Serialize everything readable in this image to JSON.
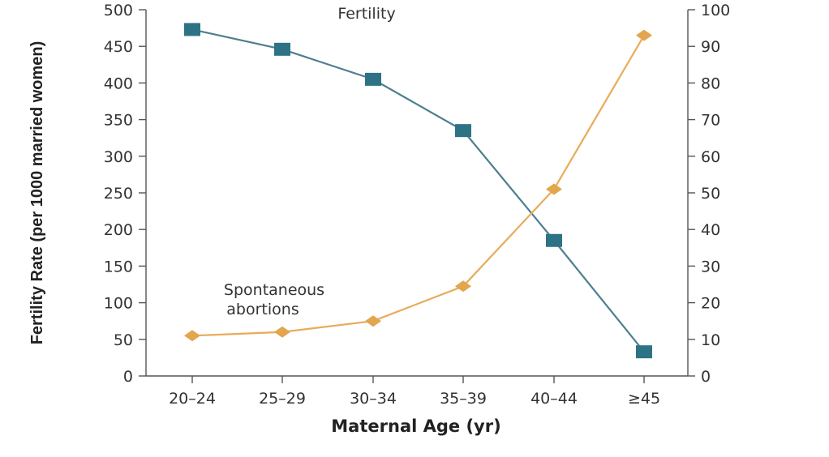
{
  "chart_data": {
    "type": "line",
    "title": "",
    "xlabel": "Maternal Age (yr)",
    "ylabel": "Fertility Rate (per 1000 married women)",
    "y2label": "",
    "categories": [
      "20–24",
      "25–29",
      "30–34",
      "35–39",
      "40–44",
      "≥45"
    ],
    "ylim": [
      0,
      500
    ],
    "y2lim": [
      0,
      100
    ],
    "yticks": [
      0,
      50,
      100,
      150,
      200,
      250,
      300,
      350,
      400,
      450,
      500
    ],
    "y2ticks": [
      0,
      10,
      20,
      30,
      40,
      50,
      60,
      70,
      80,
      90,
      100
    ],
    "grid": false,
    "series": [
      {
        "name": "Fertility",
        "axis": "left",
        "marker": "square",
        "color": "#2e7385",
        "line_color": "#4f7f8f",
        "values": [
          473,
          446,
          405,
          335,
          185,
          33
        ]
      },
      {
        "name": "Spontaneous abortions",
        "axis": "right",
        "marker": "diamond",
        "color": "#e3a54d",
        "line_color": "#e8ab5a",
        "values": [
          11,
          12,
          15,
          24.5,
          51,
          93
        ]
      }
    ],
    "annotations": [
      {
        "series": 0,
        "text": "Fertility"
      },
      {
        "series": 1,
        "lines": [
          "Spontaneous",
          "abortions"
        ]
      }
    ]
  }
}
